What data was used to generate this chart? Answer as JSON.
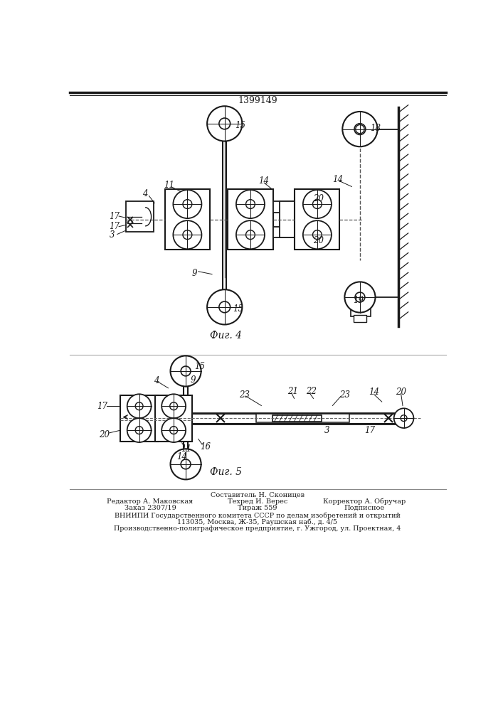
{
  "patent_number": "1399149",
  "bg_color": "#ffffff",
  "line_color": "#1a1a1a",
  "fig4_caption": "Фиг. 4",
  "fig5_caption": "Фиг. 5",
  "footer_line0": "Составитель Н. Сконицев",
  "footer_line1_left": "Редактор А. Маковская",
  "footer_line1_mid": "Техред И. Верес",
  "footer_line1_right": "Корректор А. Обручар",
  "footer_line2_left": "Заказ 2307/19",
  "footer_line2_mid": "Тираж 559",
  "footer_line2_right": "Подписное",
  "footer_line3": "ВНИИПИ Государственного комитета СССР по делам изобретений и открытий",
  "footer_line4": "113035, Москва, Ж-35, Раушская наб., д. 4/5",
  "footer_line5": "Производственно-полиграфическое предприятие, г. Ужгород, ул. Проектная, 4"
}
